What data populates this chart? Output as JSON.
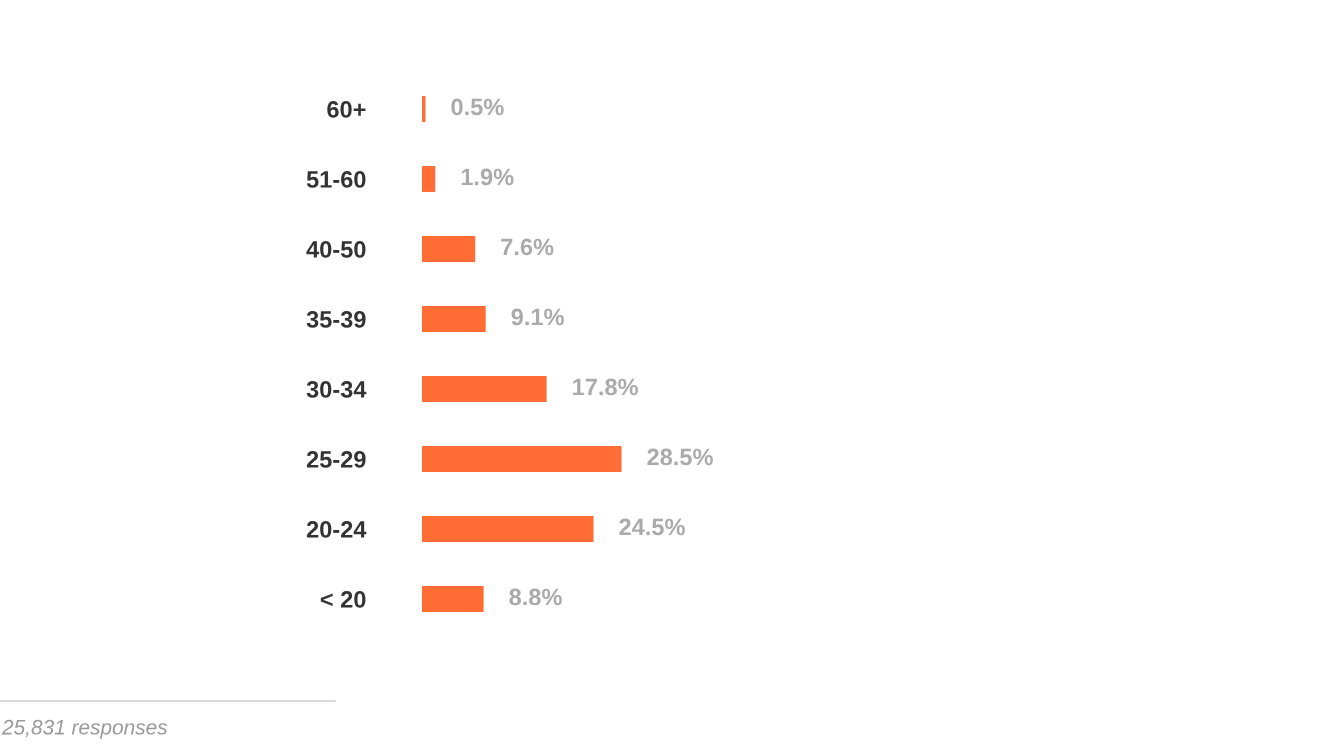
{
  "chart_data": {
    "type": "bar",
    "orientation": "horizontal",
    "categories": [
      "60+",
      "51-60",
      "40-50",
      "35-39",
      "30-34",
      "25-29",
      "20-24",
      "< 20"
    ],
    "values": [
      0.5,
      1.9,
      7.6,
      9.1,
      17.8,
      28.5,
      24.5,
      8.8
    ],
    "value_labels": [
      "0.5%",
      "1.9%",
      "7.6%",
      "9.1%",
      "17.8%",
      "28.5%",
      "24.5%",
      "8.8%"
    ],
    "color": "#ff6d34",
    "grid": false,
    "annotations": [
      "25,831 responses"
    ]
  }
}
